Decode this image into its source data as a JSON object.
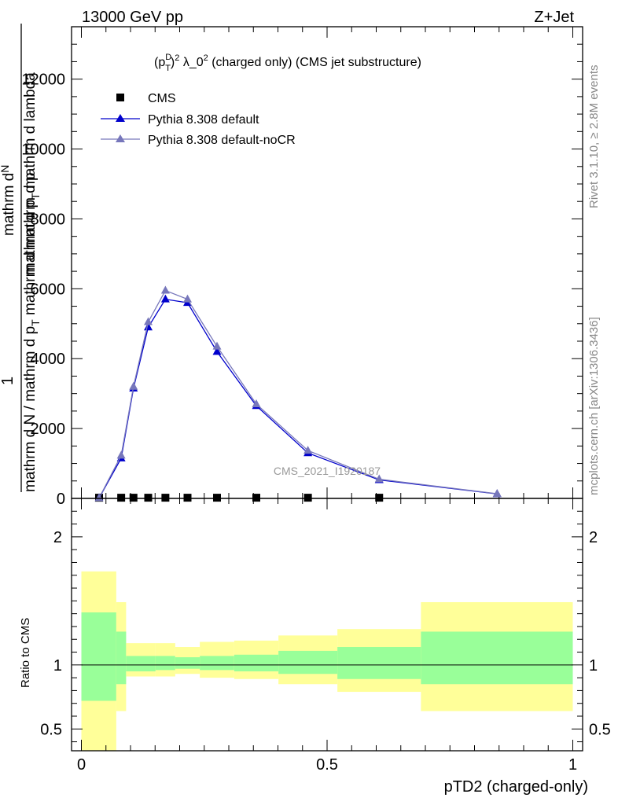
{
  "header": {
    "left": "13000 GeV pp",
    "right": "Z+Jet"
  },
  "side_labels": {
    "rivet": "Rivet 3.1.10, ≥ 2.8M events",
    "mcplots": "mcplots.cern.ch [arXiv:1306.3436]"
  },
  "watermark": "CMS_2021_I1920187",
  "ylabel_main": {
    "numerator_one": "1",
    "numerator_a": "mathrm d",
    "numerator_N": "N",
    "numerator_b": "mathrm d p",
    "sub_T": "T",
    "numerator_c": " mathrm d lambda",
    "denominator": "mathrm d N / mathrm d p",
    "denominator_rest": " mathrm d mathrm d p"
  },
  "main_title": {
    "p": "(p",
    "sup_D": "D",
    "sub_T": "T",
    "close": ")",
    "sup_2a": "2",
    "lambda": " λ_0",
    "sup_2b": "2",
    "rest": " (charged only) (CMS jet substructure)"
  },
  "legend": {
    "cms": "CMS",
    "default": "Pythia 8.308 default",
    "nocr": "Pythia 8.308 default-noCR"
  },
  "ratio_ylabel": "Ratio to CMS",
  "xlabel": "pTD2 (charged-only)",
  "colors": {
    "default": "#0000cc",
    "nocr": "#7777bb",
    "band_stat": "#99ff99",
    "band_total": "#ffff99"
  },
  "chart_data": [
    {
      "type": "line",
      "panel": "main",
      "xlim": [
        -0.02,
        1.02
      ],
      "ylim": [
        0,
        13500
      ],
      "yticks": [
        0,
        2000,
        4000,
        6000,
        8000,
        10000,
        12000
      ],
      "ytick_labels": [
        "0",
        "2000",
        "4000",
        "6000",
        "8000",
        "10000",
        "12000"
      ],
      "xticks": [
        0,
        0.5,
        1
      ],
      "series": [
        {
          "name": "CMS",
          "marker": "square",
          "x": [
            0.036,
            0.081,
            0.106,
            0.136,
            0.171,
            0.216,
            0.276,
            0.356,
            0.461,
            0.606
          ],
          "y": [
            20,
            20,
            20,
            20,
            20,
            20,
            20,
            20,
            20,
            20
          ]
        },
        {
          "name": "Pythia 8.308 default",
          "marker": "triangle",
          "x": [
            0.036,
            0.081,
            0.106,
            0.136,
            0.171,
            0.216,
            0.276,
            0.356,
            0.461,
            0.606,
            0.846
          ],
          "y": [
            10,
            1150,
            3150,
            4900,
            5700,
            5600,
            4200,
            2650,
            1300,
            530,
            130
          ]
        },
        {
          "name": "Pythia 8.308 default-noCR",
          "marker": "triangle",
          "x": [
            0.036,
            0.081,
            0.106,
            0.136,
            0.171,
            0.216,
            0.276,
            0.356,
            0.461,
            0.606,
            0.846
          ],
          "y": [
            10,
            1230,
            3200,
            5050,
            5950,
            5700,
            4350,
            2700,
            1370,
            550,
            135
          ]
        }
      ]
    },
    {
      "type": "area",
      "panel": "ratio",
      "ylabel": "Ratio to CMS",
      "xlabel": "pTD2 (charged-only)",
      "xlim": [
        -0.02,
        1.02
      ],
      "ylim": [
        0.33,
        2.3
      ],
      "yticks": [
        0.5,
        1,
        2
      ],
      "ytick_labels": [
        "0.5",
        "1",
        "2"
      ],
      "xticks": [
        0,
        0.5,
        1
      ],
      "xtick_labels": [
        "0",
        "0.5",
        "1"
      ],
      "bins": [
        {
          "x0": 0.0,
          "x1": 0.071,
          "stat": [
            0.72,
            1.41
          ],
          "total": [
            0.33,
            1.73
          ]
        },
        {
          "x0": 0.071,
          "x1": 0.091,
          "stat": [
            0.85,
            1.26
          ],
          "total": [
            0.64,
            1.49
          ]
        },
        {
          "x0": 0.091,
          "x1": 0.151,
          "stat": [
            0.95,
            1.07
          ],
          "total": [
            0.91,
            1.17
          ]
        },
        {
          "x0": 0.151,
          "x1": 0.191,
          "stat": [
            0.96,
            1.07
          ],
          "total": [
            0.91,
            1.17
          ]
        },
        {
          "x0": 0.191,
          "x1": 0.241,
          "stat": [
            0.97,
            1.06
          ],
          "total": [
            0.93,
            1.14
          ]
        },
        {
          "x0": 0.241,
          "x1": 0.311,
          "stat": [
            0.96,
            1.07
          ],
          "total": [
            0.9,
            1.18
          ]
        },
        {
          "x0": 0.311,
          "x1": 0.401,
          "stat": [
            0.95,
            1.08
          ],
          "total": [
            0.89,
            1.19
          ]
        },
        {
          "x0": 0.401,
          "x1": 0.521,
          "stat": [
            0.93,
            1.11
          ],
          "total": [
            0.85,
            1.23
          ]
        },
        {
          "x0": 0.521,
          "x1": 0.691,
          "stat": [
            0.89,
            1.14
          ],
          "total": [
            0.79,
            1.28
          ]
        },
        {
          "x0": 0.691,
          "x1": 1.0,
          "stat": [
            0.85,
            1.26
          ],
          "total": [
            0.64,
            1.49
          ]
        }
      ]
    }
  ]
}
